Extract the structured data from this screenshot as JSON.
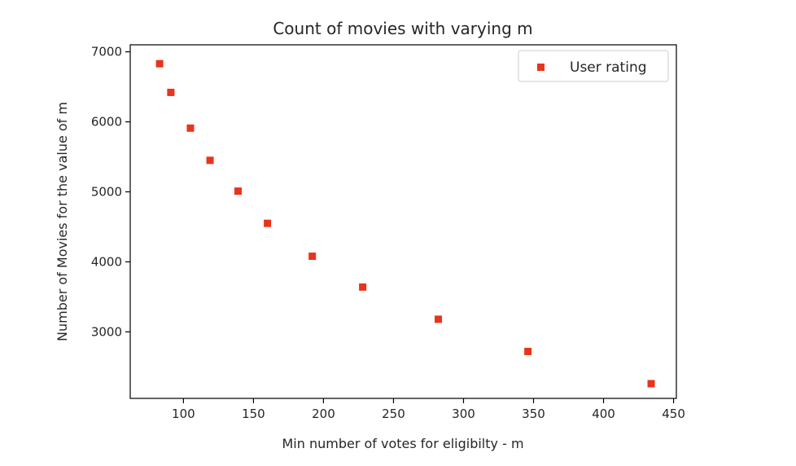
{
  "chart_data": {
    "type": "scatter",
    "title": "Count of movies with varying m",
    "xlabel": "Min number of votes for eligibilty - m",
    "ylabel": "Number of Movies for the value of m",
    "xlim": [
      62,
      452
    ],
    "ylim": [
      2050,
      7100
    ],
    "xticks": [
      100,
      150,
      200,
      250,
      300,
      350,
      400,
      450
    ],
    "yticks": [
      3000,
      4000,
      5000,
      6000,
      7000
    ],
    "grid": false,
    "legend_position": "upper right",
    "series": [
      {
        "name": "User rating",
        "marker": "square",
        "color": "#e8341c",
        "points": [
          {
            "x": 83,
            "y": 6830
          },
          {
            "x": 91,
            "y": 6420
          },
          {
            "x": 105,
            "y": 5910
          },
          {
            "x": 119,
            "y": 5450
          },
          {
            "x": 139,
            "y": 5010
          },
          {
            "x": 160,
            "y": 4550
          },
          {
            "x": 192,
            "y": 4080
          },
          {
            "x": 228,
            "y": 3640
          },
          {
            "x": 282,
            "y": 3180
          },
          {
            "x": 346,
            "y": 2720
          },
          {
            "x": 434,
            "y": 2260
          }
        ]
      }
    ]
  }
}
